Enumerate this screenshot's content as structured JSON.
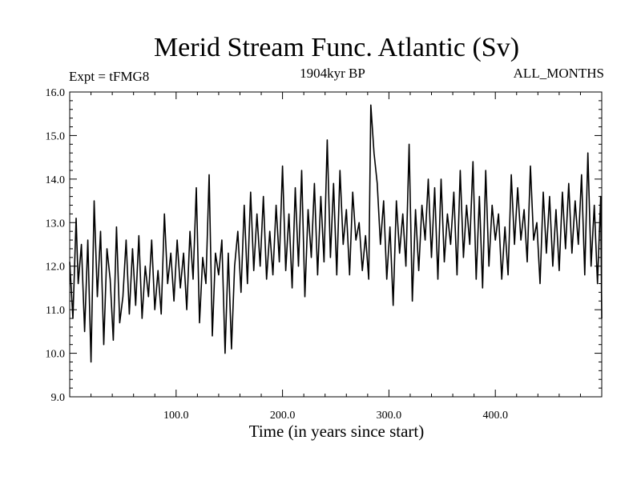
{
  "chart_data": {
    "type": "line",
    "title": "Merid Stream Func. Atlantic (Sv)",
    "subtitle_left": "Expt = tFMG8",
    "subtitle_center": "1904kyr BP",
    "subtitle_right": "ALL_MONTHS",
    "xlabel": "Time (in years since start)",
    "ylabel": "",
    "xlim": [
      0,
      500
    ],
    "ylim": [
      9.0,
      16.0
    ],
    "x_ticks": [
      100,
      200,
      300,
      400
    ],
    "x_tick_labels": [
      "100.0",
      "200.0",
      "300.0",
      "400.0"
    ],
    "y_ticks": [
      9,
      10,
      11,
      12,
      13,
      14,
      15,
      16
    ],
    "y_tick_labels": [
      "9.0",
      "10.0",
      "11.0",
      "12.0",
      "13.0",
      "14.0",
      "15.0",
      "16.0"
    ],
    "series": [
      {
        "name": "Merid Stream Func. Atlantic",
        "x": [
          0,
          3,
          6,
          8,
          11,
          14,
          17,
          20,
          23,
          26,
          29,
          32,
          35,
          38,
          41,
          44,
          47,
          50,
          53,
          56,
          59,
          62,
          65,
          68,
          71,
          74,
          77,
          80,
          83,
          86,
          89,
          92,
          95,
          98,
          101,
          104,
          107,
          110,
          113,
          116,
          119,
          122,
          125,
          128,
          131,
          134,
          137,
          140,
          143,
          146,
          149,
          152,
          155,
          158,
          161,
          164,
          167,
          170,
          173,
          176,
          179,
          182,
          185,
          188,
          191,
          194,
          197,
          200,
          203,
          206,
          209,
          212,
          215,
          218,
          221,
          224,
          227,
          230,
          233,
          236,
          239,
          242,
          245,
          248,
          251,
          254,
          257,
          260,
          263,
          266,
          269,
          272,
          275,
          278,
          281,
          283,
          286,
          289,
          292,
          295,
          298,
          301,
          304,
          307,
          310,
          313,
          316,
          319,
          322,
          325,
          328,
          331,
          334,
          337,
          340,
          343,
          346,
          349,
          352,
          355,
          358,
          361,
          364,
          367,
          370,
          373,
          376,
          379,
          382,
          385,
          388,
          391,
          394,
          397,
          400,
          403,
          406,
          409,
          412,
          415,
          418,
          421,
          424,
          427,
          430,
          433,
          436,
          439,
          442,
          445,
          448,
          451,
          454,
          457,
          460,
          463,
          466,
          469,
          472,
          475,
          478,
          481,
          484,
          487,
          490,
          493,
          496,
          499,
          500
        ],
        "values": [
          12.1,
          10.8,
          13.1,
          11.6,
          12.5,
          10.5,
          12.6,
          9.8,
          13.5,
          11.3,
          12.8,
          10.2,
          12.4,
          11.7,
          10.3,
          12.9,
          10.7,
          11.3,
          12.6,
          10.9,
          12.4,
          11.1,
          12.7,
          10.8,
          12.0,
          11.3,
          12.6,
          11.0,
          11.9,
          10.9,
          13.2,
          11.6,
          12.3,
          11.2,
          12.6,
          11.5,
          12.3,
          11.0,
          12.8,
          11.7,
          13.8,
          10.7,
          12.2,
          11.6,
          14.1,
          10.4,
          12.3,
          11.8,
          12.6,
          10.0,
          12.3,
          10.1,
          12.0,
          12.8,
          11.4,
          13.4,
          11.6,
          13.7,
          11.9,
          13.2,
          12.0,
          13.6,
          11.7,
          12.8,
          11.8,
          13.4,
          12.1,
          14.3,
          11.9,
          13.2,
          11.5,
          13.8,
          12.0,
          14.2,
          11.3,
          13.3,
          12.2,
          13.9,
          11.8,
          13.6,
          12.1,
          14.9,
          12.2,
          13.9,
          11.8,
          14.2,
          12.5,
          13.3,
          11.8,
          13.7,
          12.6,
          13.0,
          11.9,
          12.7,
          11.7,
          15.7,
          14.6,
          13.9,
          12.5,
          13.5,
          11.7,
          12.9,
          11.1,
          13.5,
          12.3,
          13.2,
          12.0,
          14.8,
          11.2,
          13.3,
          11.9,
          13.4,
          12.6,
          14.0,
          12.2,
          13.8,
          11.7,
          14.0,
          12.1,
          13.2,
          12.5,
          13.7,
          11.8,
          14.2,
          12.2,
          13.4,
          12.5,
          14.4,
          11.7,
          13.6,
          11.5,
          14.2,
          12.0,
          13.4,
          12.6,
          13.2,
          11.7,
          12.9,
          11.8,
          14.1,
          12.5,
          13.8,
          12.6,
          13.3,
          12.1,
          14.3,
          12.6,
          13.0,
          11.6,
          13.7,
          12.3,
          13.6,
          12.0,
          13.3,
          11.9,
          13.7,
          12.4,
          13.9,
          12.3,
          13.5,
          12.5,
          14.1,
          11.8,
          14.6,
          12.0,
          13.4,
          11.6,
          13.6,
          10.8
        ]
      }
    ]
  }
}
